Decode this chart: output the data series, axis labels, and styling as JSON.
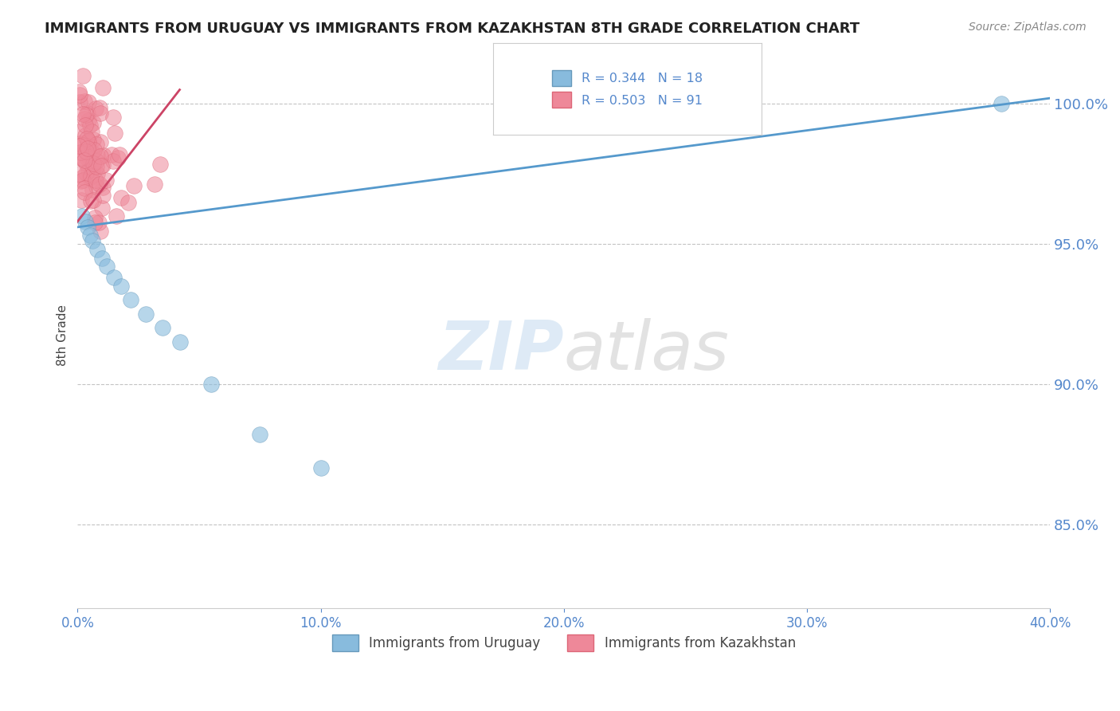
{
  "title": "IMMIGRANTS FROM URUGUAY VS IMMIGRANTS FROM KAZAKHSTAN 8TH GRADE CORRELATION CHART",
  "source": "Source: ZipAtlas.com",
  "ylabel": "8th Grade",
  "xlim": [
    0.0,
    0.4
  ],
  "ylim": [
    0.82,
    1.015
  ],
  "yticks": [
    0.85,
    0.9,
    0.95,
    1.0
  ],
  "ytick_labels": [
    "85.0%",
    "90.0%",
    "95.0%",
    "100.0%"
  ],
  "xticks": [
    0.0,
    0.1,
    0.2,
    0.3,
    0.4
  ],
  "xtick_labels": [
    "0.0%",
    "10.0%",
    "20.0%",
    "30.0%",
    "40.0%"
  ],
  "title_color": "#222222",
  "axis_color": "#5588cc",
  "grid_color": "#aaaaaa",
  "blue_color": "#88bbdd",
  "pink_color": "#ee8899",
  "blue_edge": "#6699bb",
  "pink_edge": "#dd6677",
  "blue_line_color": "#5599cc",
  "pink_line_color": "#cc4466",
  "blue_line": {
    "x0": 0.0,
    "y0": 0.956,
    "x1": 0.4,
    "y1": 1.002
  },
  "pink_line": {
    "x0": 0.0,
    "y0": 0.958,
    "x1": 0.042,
    "y1": 1.005
  },
  "uru_x": [
    0.002,
    0.003,
    0.004,
    0.005,
    0.006,
    0.008,
    0.01,
    0.012,
    0.015,
    0.018,
    0.022,
    0.028,
    0.035,
    0.042,
    0.055,
    0.075,
    0.1,
    0.38
  ],
  "uru_y": [
    0.96,
    0.958,
    0.956,
    0.953,
    0.951,
    0.948,
    0.945,
    0.942,
    0.938,
    0.935,
    0.93,
    0.925,
    0.92,
    0.915,
    0.9,
    0.882,
    0.87,
    1.0
  ],
  "legend_blue_label": "R = 0.344   N = 18",
  "legend_pink_label": "R = 0.503   N = 91",
  "bottom_legend_blue": "Immigrants from Uruguay",
  "bottom_legend_pink": "Immigrants from Kazakhstan",
  "watermark_zip_color": "#c8ddf0",
  "watermark_atlas_color": "#d0d0d0"
}
